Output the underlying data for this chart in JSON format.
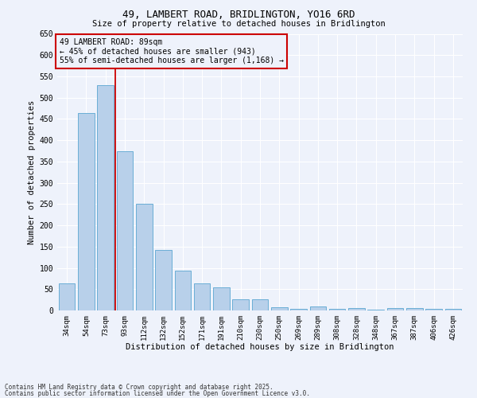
{
  "title1": "49, LAMBERT ROAD, BRIDLINGTON, YO16 6RD",
  "title2": "Size of property relative to detached houses in Bridlington",
  "xlabel": "Distribution of detached houses by size in Bridlington",
  "ylabel": "Number of detached properties",
  "categories": [
    "34sqm",
    "54sqm",
    "73sqm",
    "93sqm",
    "112sqm",
    "132sqm",
    "152sqm",
    "171sqm",
    "191sqm",
    "210sqm",
    "230sqm",
    "250sqm",
    "269sqm",
    "289sqm",
    "308sqm",
    "328sqm",
    "348sqm",
    "367sqm",
    "387sqm",
    "406sqm",
    "426sqm"
  ],
  "values": [
    63,
    463,
    530,
    375,
    250,
    142,
    94,
    63,
    55,
    27,
    27,
    7,
    3,
    10,
    3,
    6,
    2,
    5,
    5,
    3,
    3
  ],
  "bar_color": "#b8d0ea",
  "bar_edge_color": "#6aaed6",
  "vline_color": "#cc0000",
  "ylim": [
    0,
    650
  ],
  "yticks": [
    0,
    50,
    100,
    150,
    200,
    250,
    300,
    350,
    400,
    450,
    500,
    550,
    600,
    650
  ],
  "annotation_text": "49 LAMBERT ROAD: 89sqm\n← 45% of detached houses are smaller (943)\n55% of semi-detached houses are larger (1,168) →",
  "annotation_box_color": "#cc0000",
  "bg_color": "#eef2fb",
  "grid_color": "#ffffff",
  "footer1": "Contains HM Land Registry data © Crown copyright and database right 2025.",
  "footer2": "Contains public sector information licensed under the Open Government Licence v3.0."
}
